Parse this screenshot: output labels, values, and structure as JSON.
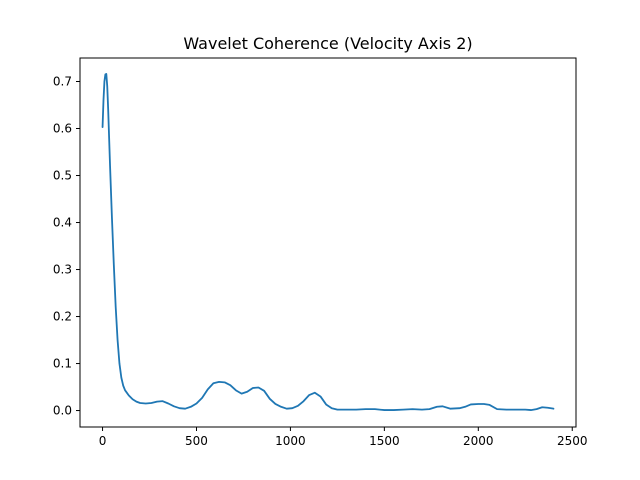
{
  "chart_data": {
    "type": "line",
    "title": "Wavelet Coherence (Velocity Axis 2)",
    "xlabel": "",
    "ylabel": "",
    "xlim": [
      -120,
      2520
    ],
    "ylim": [
      -0.035,
      0.75
    ],
    "grid": false,
    "legend": false,
    "x_ticks": [
      0,
      500,
      1000,
      1500,
      2000,
      2500
    ],
    "x_tick_labels": [
      "0",
      "500",
      "1000",
      "1500",
      "2000",
      "2500"
    ],
    "y_ticks": [
      0.0,
      0.1,
      0.2,
      0.3,
      0.4,
      0.5,
      0.6,
      0.7
    ],
    "y_tick_labels": [
      "0.0",
      "0.1",
      "0.2",
      "0.3",
      "0.4",
      "0.5",
      "0.6",
      "0.7"
    ],
    "series": [
      {
        "color": "#1f77b4",
        "x": [
          0,
          5,
          10,
          15,
          20,
          25,
          30,
          35,
          40,
          50,
          60,
          70,
          80,
          90,
          100,
          110,
          120,
          140,
          160,
          180,
          200,
          230,
          260,
          290,
          320,
          350,
          380,
          410,
          440,
          470,
          500,
          530,
          560,
          590,
          620,
          650,
          680,
          710,
          740,
          770,
          800,
          830,
          860,
          890,
          920,
          950,
          980,
          1010,
          1040,
          1070,
          1100,
          1130,
          1160,
          1190,
          1220,
          1250,
          1300,
          1350,
          1400,
          1450,
          1500,
          1550,
          1600,
          1650,
          1700,
          1740,
          1780,
          1810,
          1850,
          1900,
          1930,
          1960,
          2000,
          2030,
          2060,
          2100,
          2150,
          2200,
          2250,
          2280,
          2310,
          2340,
          2370,
          2400
        ],
        "y": [
          0.603,
          0.66,
          0.7,
          0.715,
          0.716,
          0.69,
          0.64,
          0.58,
          0.52,
          0.41,
          0.31,
          0.22,
          0.15,
          0.1,
          0.07,
          0.053,
          0.043,
          0.032,
          0.024,
          0.019,
          0.016,
          0.015,
          0.016,
          0.019,
          0.02,
          0.015,
          0.009,
          0.005,
          0.004,
          0.008,
          0.015,
          0.027,
          0.045,
          0.058,
          0.061,
          0.06,
          0.054,
          0.043,
          0.036,
          0.04,
          0.048,
          0.049,
          0.042,
          0.025,
          0.014,
          0.008,
          0.004,
          0.005,
          0.01,
          0.02,
          0.033,
          0.038,
          0.03,
          0.013,
          0.005,
          0.002,
          0.002,
          0.002,
          0.003,
          0.003,
          0.001,
          0.001,
          0.002,
          0.003,
          0.002,
          0.003,
          0.008,
          0.009,
          0.004,
          0.005,
          0.008,
          0.013,
          0.014,
          0.014,
          0.012,
          0.003,
          0.002,
          0.002,
          0.002,
          0.001,
          0.003,
          0.007,
          0.006,
          0.004
        ]
      }
    ]
  }
}
